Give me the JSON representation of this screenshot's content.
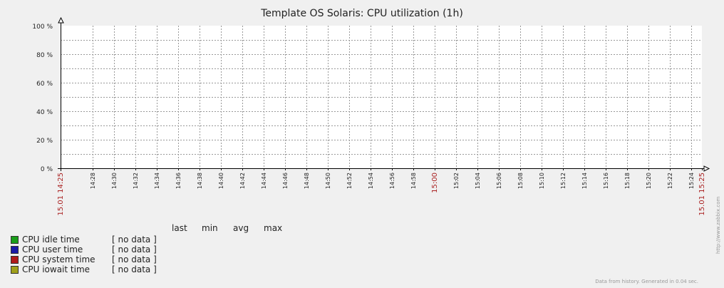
{
  "chart_data": {
    "type": "line",
    "title": "Template OS Solaris: CPU utilization (1h)",
    "xlabel": "",
    "ylabel": "",
    "ylim": [
      0,
      100
    ],
    "y_unit": "%",
    "y_ticks": [
      "0 %",
      "20 %",
      "40 %",
      "60 %",
      "80 %",
      "100 %"
    ],
    "y_tick_values": [
      0,
      20,
      40,
      60,
      80,
      100
    ],
    "x_range": [
      "2015-01-15 14:25",
      "2015-01-15 15:25"
    ],
    "x_tick_labels": [
      {
        "text": "15.01 14:25",
        "minute": 0,
        "highlight": true
      },
      {
        "text": "14:28",
        "minute": 3
      },
      {
        "text": "14:30",
        "minute": 5
      },
      {
        "text": "14:32",
        "minute": 7
      },
      {
        "text": "14:34",
        "minute": 9
      },
      {
        "text": "14:36",
        "minute": 11
      },
      {
        "text": "14:38",
        "minute": 13
      },
      {
        "text": "14:40",
        "minute": 15
      },
      {
        "text": "14:42",
        "minute": 17
      },
      {
        "text": "14:44",
        "minute": 19
      },
      {
        "text": "14:46",
        "minute": 21
      },
      {
        "text": "14:48",
        "minute": 23
      },
      {
        "text": "14:50",
        "minute": 25
      },
      {
        "text": "14:52",
        "minute": 27
      },
      {
        "text": "14:54",
        "minute": 29
      },
      {
        "text": "14:56",
        "minute": 31
      },
      {
        "text": "14:58",
        "minute": 33
      },
      {
        "text": "15:00",
        "minute": 35,
        "highlight": true
      },
      {
        "text": "15:02",
        "minute": 37
      },
      {
        "text": "15:04",
        "minute": 39
      },
      {
        "text": "15:06",
        "minute": 41
      },
      {
        "text": "15:08",
        "minute": 43
      },
      {
        "text": "15:10",
        "minute": 45
      },
      {
        "text": "15:12",
        "minute": 47
      },
      {
        "text": "15:14",
        "minute": 49
      },
      {
        "text": "15:16",
        "minute": 51
      },
      {
        "text": "15:18",
        "minute": 53
      },
      {
        "text": "15:20",
        "minute": 55
      },
      {
        "text": "15:22",
        "minute": 57
      },
      {
        "text": "15:24",
        "minute": 59
      },
      {
        "text": "15.01 15:25",
        "minute": 60,
        "highlight": true
      }
    ],
    "grid": true,
    "series": [
      {
        "name": "CPU idle time",
        "color": "#1a9e1a",
        "values": [],
        "value_text": "[ no data ]"
      },
      {
        "name": "CPU user time",
        "color": "#1a1aa6",
        "values": [],
        "value_text": "[ no data ]"
      },
      {
        "name": "CPU system time",
        "color": "#b01a1a",
        "values": [],
        "value_text": "[ no data ]"
      },
      {
        "name": "CPU iowait time",
        "color": "#a0a01a",
        "values": [],
        "value_text": "[ no data ]"
      }
    ]
  },
  "legend": {
    "headers": [
      "last",
      "min",
      "avg",
      "max"
    ]
  },
  "footer_text": "Data from history. Generated in 0.04 sec.",
  "side_text": "http://www.zabbix.com",
  "colors": {
    "background": "#f0f0f0",
    "plot_background": "#ffffff",
    "grid": "#999999",
    "axis": "#000000",
    "highlight_tick": "#aa2222"
  }
}
